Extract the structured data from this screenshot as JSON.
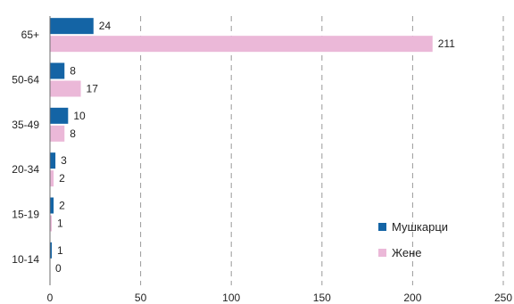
{
  "chart_data": {
    "type": "bar",
    "orientation": "horizontal",
    "categories": [
      "65+",
      "50-64",
      "35-49",
      "20-34",
      "15-19",
      "10-14"
    ],
    "series": [
      {
        "name": "Мушкарци",
        "color": "#1464a5",
        "values": [
          24,
          8,
          10,
          3,
          2,
          1
        ]
      },
      {
        "name": "Жене",
        "color": "#ebb8d8",
        "values": [
          211,
          17,
          8,
          2,
          1,
          0
        ]
      }
    ],
    "xlim": [
      0,
      250
    ],
    "x_ticks": [
      0,
      50,
      100,
      150,
      200,
      250
    ],
    "grid": "vertical-dashed",
    "legend_position": "bottom-right"
  }
}
